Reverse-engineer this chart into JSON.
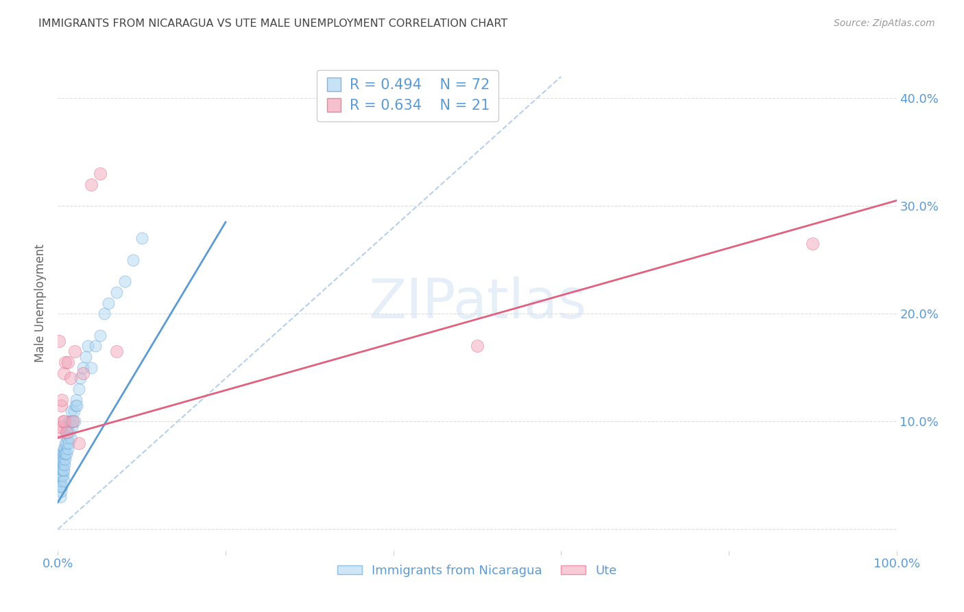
{
  "title": "IMMIGRANTS FROM NICARAGUA VS UTE MALE UNEMPLOYMENT CORRELATION CHART",
  "source": "Source: ZipAtlas.com",
  "ylabel_label": "Male Unemployment",
  "xmin": 0.0,
  "xmax": 1.0,
  "ymin": -0.02,
  "ymax": 0.44,
  "legend_blue_R": "R = 0.494",
  "legend_blue_N": "N = 72",
  "legend_pink_R": "R = 0.634",
  "legend_pink_N": "N = 21",
  "legend_blue_label": "Immigrants from Nicaragua",
  "legend_pink_label": "Ute",
  "watermark": "ZIPatlas",
  "blue_fill": "#aed6f1",
  "pink_fill": "#f1a7bb",
  "blue_edge": "#5b9bd5",
  "pink_edge": "#e0607e",
  "title_color": "#444444",
  "tick_color": "#5b9bd5",
  "blue_scatter_x": [
    0.001,
    0.001,
    0.001,
    0.001,
    0.002,
    0.002,
    0.002,
    0.002,
    0.002,
    0.003,
    0.003,
    0.003,
    0.003,
    0.003,
    0.003,
    0.004,
    0.004,
    0.004,
    0.004,
    0.004,
    0.005,
    0.005,
    0.005,
    0.005,
    0.006,
    0.006,
    0.006,
    0.006,
    0.007,
    0.007,
    0.007,
    0.007,
    0.008,
    0.008,
    0.008,
    0.009,
    0.009,
    0.009,
    0.01,
    0.01,
    0.01,
    0.011,
    0.011,
    0.012,
    0.012,
    0.013,
    0.013,
    0.014,
    0.015,
    0.015,
    0.016,
    0.017,
    0.018,
    0.019,
    0.02,
    0.021,
    0.022,
    0.023,
    0.025,
    0.027,
    0.03,
    0.033,
    0.036,
    0.04,
    0.045,
    0.05,
    0.055,
    0.06,
    0.07,
    0.08,
    0.09,
    0.1
  ],
  "blue_scatter_y": [
    0.05,
    0.055,
    0.06,
    0.065,
    0.04,
    0.045,
    0.05,
    0.055,
    0.06,
    0.03,
    0.04,
    0.05,
    0.055,
    0.06,
    0.065,
    0.035,
    0.045,
    0.05,
    0.055,
    0.065,
    0.04,
    0.05,
    0.055,
    0.07,
    0.05,
    0.055,
    0.06,
    0.07,
    0.045,
    0.055,
    0.065,
    0.075,
    0.06,
    0.07,
    0.075,
    0.065,
    0.07,
    0.08,
    0.07,
    0.08,
    0.09,
    0.085,
    0.095,
    0.075,
    0.09,
    0.08,
    0.1,
    0.09,
    0.085,
    0.1,
    0.11,
    0.095,
    0.1,
    0.11,
    0.1,
    0.115,
    0.12,
    0.115,
    0.13,
    0.14,
    0.15,
    0.16,
    0.17,
    0.15,
    0.17,
    0.18,
    0.2,
    0.21,
    0.22,
    0.23,
    0.25,
    0.27
  ],
  "pink_scatter_x": [
    0.001,
    0.002,
    0.003,
    0.004,
    0.005,
    0.006,
    0.007,
    0.008,
    0.009,
    0.01,
    0.012,
    0.015,
    0.018,
    0.02,
    0.025,
    0.03,
    0.04,
    0.05,
    0.07,
    0.5,
    0.9
  ],
  "pink_scatter_y": [
    0.175,
    0.09,
    0.095,
    0.115,
    0.12,
    0.1,
    0.145,
    0.1,
    0.155,
    0.09,
    0.155,
    0.14,
    0.1,
    0.165,
    0.08,
    0.145,
    0.32,
    0.33,
    0.165,
    0.17,
    0.265
  ],
  "blue_trend_x": [
    0.0,
    0.2
  ],
  "blue_trend_y": [
    0.025,
    0.285
  ],
  "pink_trend_x": [
    0.0,
    1.0
  ],
  "pink_trend_y": [
    0.085,
    0.305
  ],
  "dashed_trend_x": [
    0.0,
    0.6
  ],
  "dashed_trend_y": [
    0.0,
    0.42
  ],
  "grid_yticks": [
    0.0,
    0.1,
    0.2,
    0.3,
    0.4
  ],
  "right_ytick_labels": [
    "",
    "10.0%",
    "20.0%",
    "30.0%",
    "40.0%"
  ],
  "grid_color": "#dddddd",
  "background_color": "#ffffff"
}
